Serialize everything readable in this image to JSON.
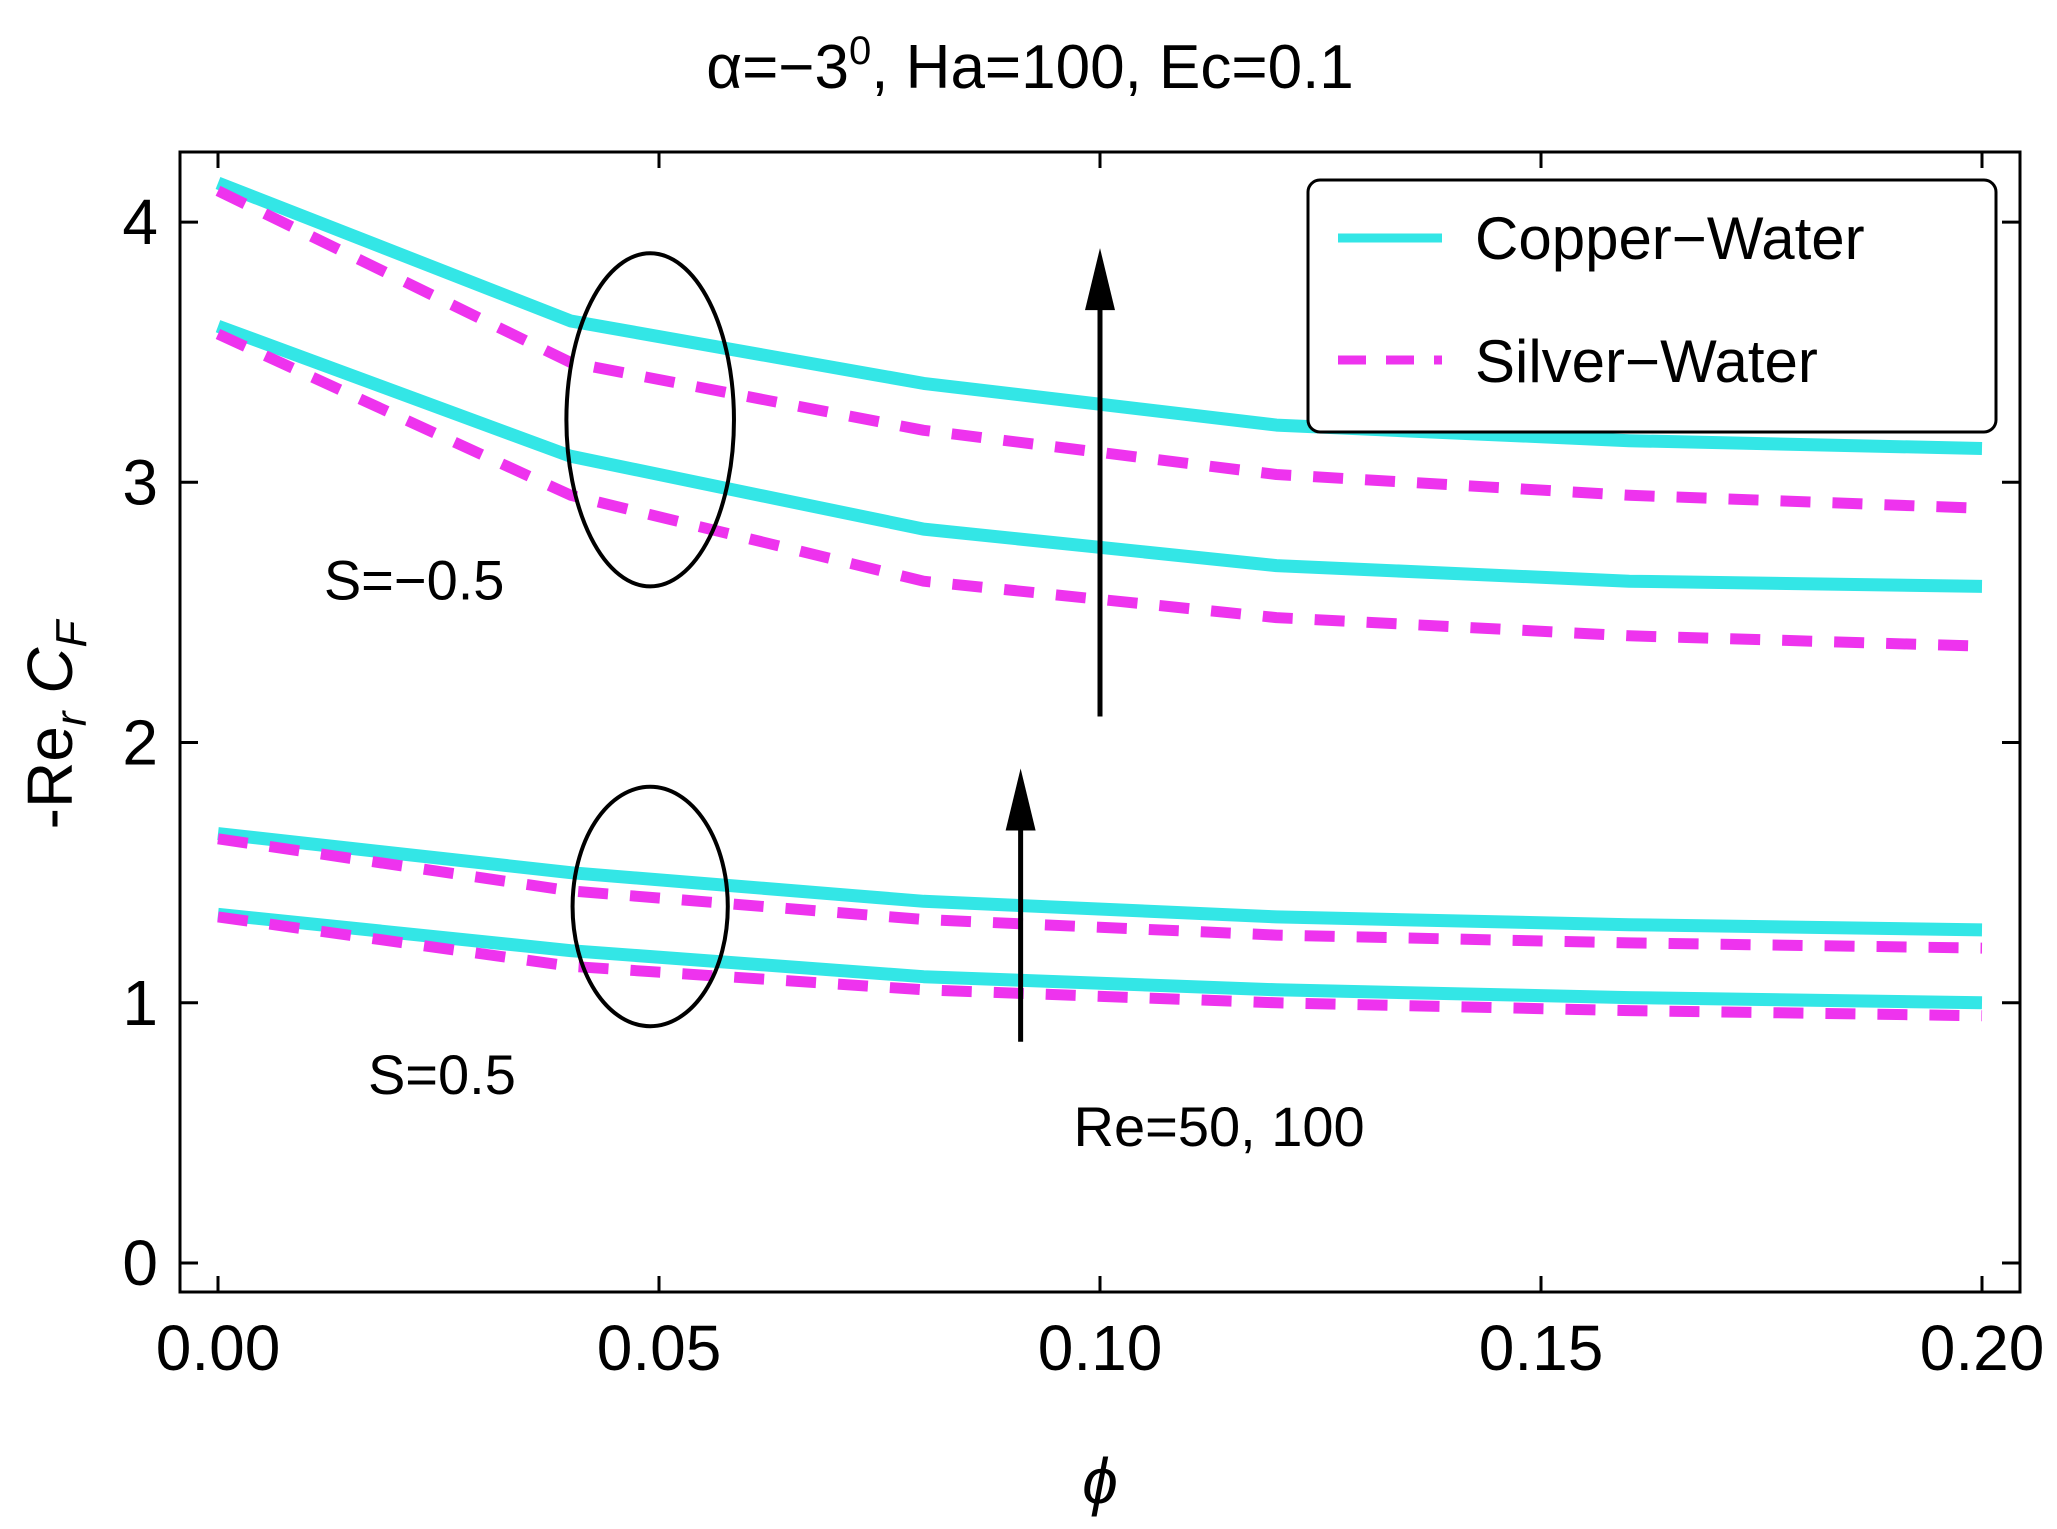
{
  "chart_data": {
    "type": "line",
    "title": {
      "prefix": "α=−3",
      "sup": "0",
      "suffix": ", Ha=100, Ec=0.1"
    },
    "xlabel": "ϕ",
    "ylabel": {
      "main": "-Re",
      "sub1": "r",
      "mid": " C",
      "sub2": "F"
    },
    "xlim": [
      0,
      0.2
    ],
    "ylim": [
      0,
      4.3
    ],
    "xticks": [
      0,
      0.05,
      0.1,
      0.15,
      0.2
    ],
    "xtick_labels": [
      "0.00",
      "0.05",
      "0.10",
      "0.15",
      "0.20"
    ],
    "yticks": [
      0,
      1,
      2,
      3,
      4
    ],
    "ytick_labels": [
      "0",
      "1",
      "2",
      "3",
      "4"
    ],
    "x": [
      0,
      0.04,
      0.08,
      0.12,
      0.16,
      0.2
    ],
    "legend_position": "top-right",
    "legend": [
      {
        "label": "Copper−Water",
        "style": "solid",
        "color": "#33e6e6"
      },
      {
        "label": "Silver−Water",
        "style": "dashed",
        "color": "#ee33ee"
      }
    ],
    "series": [
      {
        "name": "Copper−Water, S=-0.5, Re=100",
        "group": "Copper−Water",
        "values": [
          4.15,
          3.62,
          3.38,
          3.22,
          3.16,
          3.13
        ]
      },
      {
        "name": "Silver−Water, S=-0.5, Re=100",
        "group": "Silver−Water",
        "values": [
          4.12,
          3.46,
          3.2,
          3.03,
          2.95,
          2.9
        ]
      },
      {
        "name": "Copper−Water, S=-0.5, Re=50",
        "group": "Copper−Water",
        "values": [
          3.6,
          3.1,
          2.82,
          2.68,
          2.62,
          2.6
        ]
      },
      {
        "name": "Silver−Water, S=-0.5, Re=50",
        "group": "Silver−Water",
        "values": [
          3.57,
          2.95,
          2.62,
          2.48,
          2.41,
          2.37
        ]
      },
      {
        "name": "Copper−Water, S=0.5, Re=100",
        "group": "Copper−Water",
        "values": [
          1.65,
          1.5,
          1.39,
          1.33,
          1.3,
          1.28
        ]
      },
      {
        "name": "Silver−Water, S=0.5, Re=100",
        "group": "Silver−Water",
        "values": [
          1.63,
          1.43,
          1.32,
          1.26,
          1.23,
          1.21
        ]
      },
      {
        "name": "Copper−Water, S=0.5, Re=50",
        "group": "Copper−Water",
        "values": [
          1.34,
          1.2,
          1.1,
          1.05,
          1.02,
          1.0
        ]
      },
      {
        "name": "Silver−Water, S=0.5, Re=50",
        "group": "Silver−Water",
        "values": [
          1.33,
          1.14,
          1.05,
          1.0,
          0.97,
          0.95
        ]
      }
    ],
    "annotations": [
      {
        "text": "S=−0.5",
        "x": 0.012,
        "y": 2.55
      },
      {
        "text": "S=0.5",
        "x": 0.017,
        "y": 0.65
      },
      {
        "text": "Re=50, 100",
        "x": 0.097,
        "y": 0.45
      }
    ],
    "ellipses": [
      {
        "name": "ellipse-s-minus",
        "cx": 0.049,
        "cy": 3.24,
        "rx": 0.0095,
        "ry": 0.64
      },
      {
        "name": "ellipse-s-plus",
        "cx": 0.049,
        "cy": 1.37,
        "rx": 0.0088,
        "ry": 0.46
      }
    ],
    "arrows": [
      {
        "name": "arrow-re-upper",
        "x": 0.1,
        "y_from": 2.1,
        "y_to": 3.9
      },
      {
        "name": "arrow-re-lower",
        "x": 0.091,
        "y_from": 0.85,
        "y_to": 1.9
      }
    ]
  }
}
